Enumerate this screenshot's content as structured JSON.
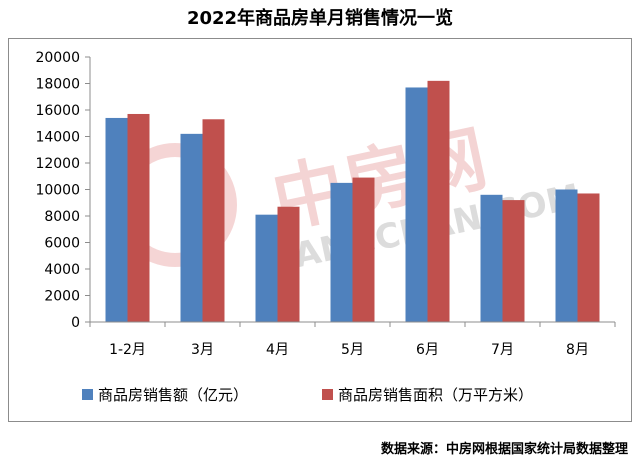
{
  "title": "2022年商品房单月销售情况一览",
  "source": "数据来源：中房网根据国家统计局数据整理",
  "watermark": {
    "logo_text": "中房网",
    "url_text": "FANGCHAN.COM"
  },
  "colors": {
    "series1": "#4f81bd",
    "series2": "#c0504d",
    "axis": "#8c8c8c"
  },
  "chart_data": {
    "type": "bar",
    "title": "2022年商品房单月销售情况一览",
    "xlabel": "",
    "ylabel": "",
    "categories": [
      "1-2月",
      "3月",
      "4月",
      "5月",
      "6月",
      "7月",
      "8月"
    ],
    "ylim": [
      0,
      20000
    ],
    "yticks": [
      0,
      2000,
      4000,
      6000,
      8000,
      10000,
      12000,
      14000,
      16000,
      18000,
      20000
    ],
    "grid": false,
    "legend": "bottom",
    "series": [
      {
        "name": "商品房销售额（亿元）",
        "values": [
          15400,
          14200,
          8100,
          10500,
          17700,
          9600,
          10000
        ]
      },
      {
        "name": "商品房销售面积（万平方米）",
        "values": [
          15700,
          15300,
          8700,
          10900,
          18200,
          9200,
          9700
        ]
      }
    ]
  }
}
